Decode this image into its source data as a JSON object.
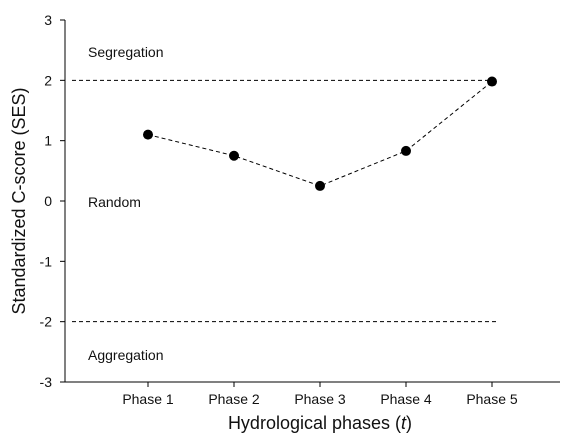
{
  "chart_data": {
    "type": "line",
    "categories": [
      "Phase 1",
      "Phase 2",
      "Phase 3",
      "Phase 4",
      "Phase 5"
    ],
    "values": [
      1.1,
      0.75,
      0.25,
      0.83,
      1.98
    ],
    "ylim": [
      -3,
      3
    ],
    "yticks": [
      "3",
      "2",
      "1",
      "0",
      "-1",
      "-2",
      "-3"
    ],
    "ylabel": "Standardized C-score (SES)",
    "xlabel_main": "Hydrological phases (",
    "xlabel_var": "t",
    "xlabel_close": ")",
    "reference_lines": [
      2,
      -2
    ],
    "region_labels": [
      "Segregation",
      "Random",
      "Aggregation"
    ],
    "line_style": "dashed",
    "marker": "filled-circle",
    "color": "#000000",
    "grid": false,
    "legend": "none"
  }
}
